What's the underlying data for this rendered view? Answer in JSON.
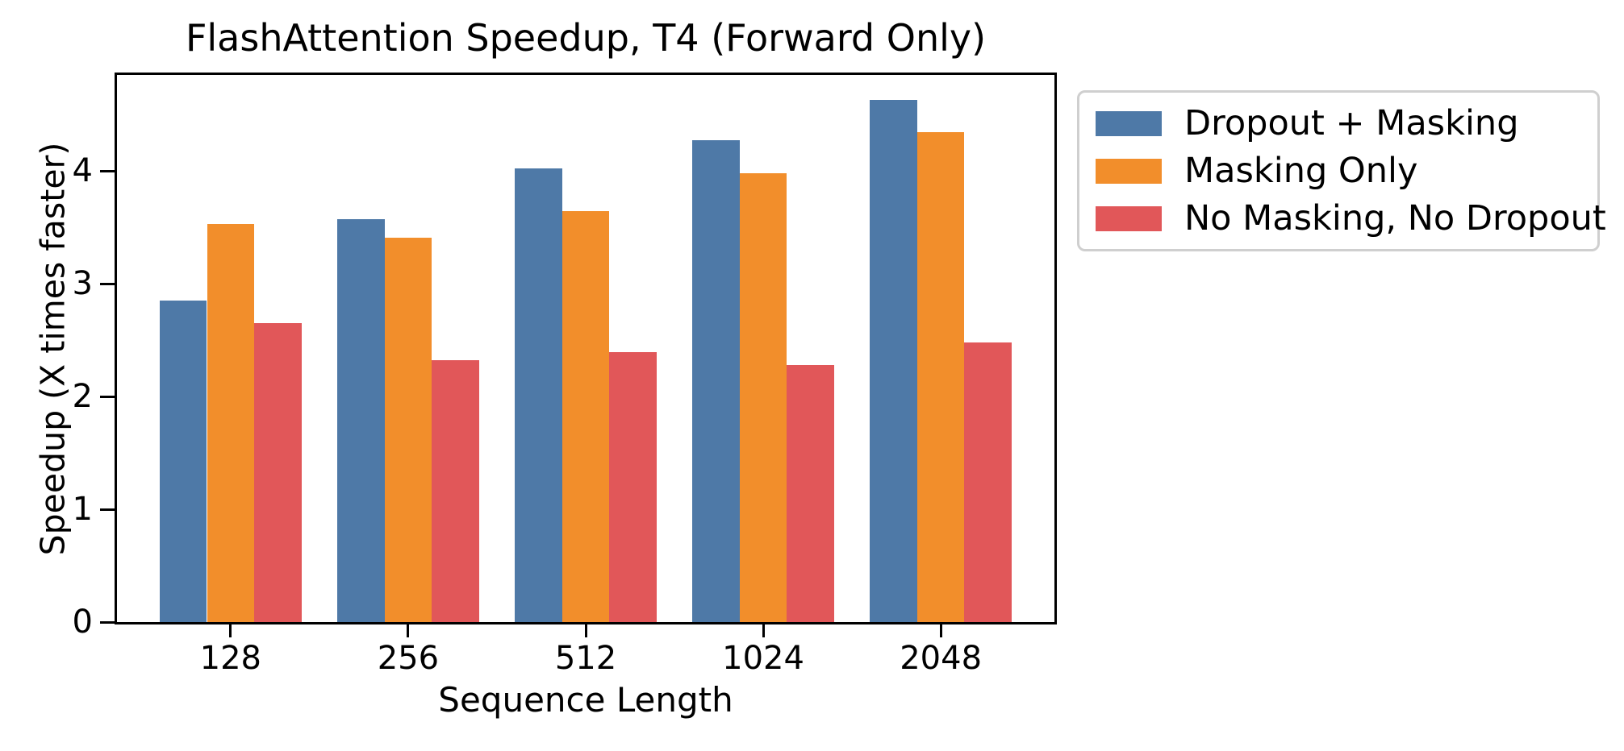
{
  "chart_data": {
    "type": "bar",
    "title": "FlashAttention Speedup, T4 (Forward Only)",
    "xlabel": "Sequence Length",
    "ylabel": "Speedup (X times faster)",
    "categories": [
      "128",
      "256",
      "512",
      "1024",
      "2048"
    ],
    "series": [
      {
        "name": "Dropout + Masking",
        "color": "#4E79A7",
        "values": [
          2.85,
          3.57,
          4.02,
          4.27,
          4.63
        ]
      },
      {
        "name": "Masking Only",
        "color": "#F28E2B",
        "values": [
          3.53,
          3.41,
          3.64,
          3.98,
          4.34
        ]
      },
      {
        "name": "No Masking, No Dropout",
        "color": "#E15759",
        "values": [
          2.65,
          2.32,
          2.39,
          2.28,
          2.48
        ]
      }
    ],
    "ylim": [
      0,
      4.85
    ],
    "yticks": [
      0,
      1,
      2,
      3,
      4
    ],
    "grid": false,
    "bar_group_width_fraction": 0.8,
    "legend_position": "upper-right-outside",
    "background_color": "#FFFFFF",
    "axis_color": "#000000",
    "legend_border_color": "#CFCFCF"
  }
}
